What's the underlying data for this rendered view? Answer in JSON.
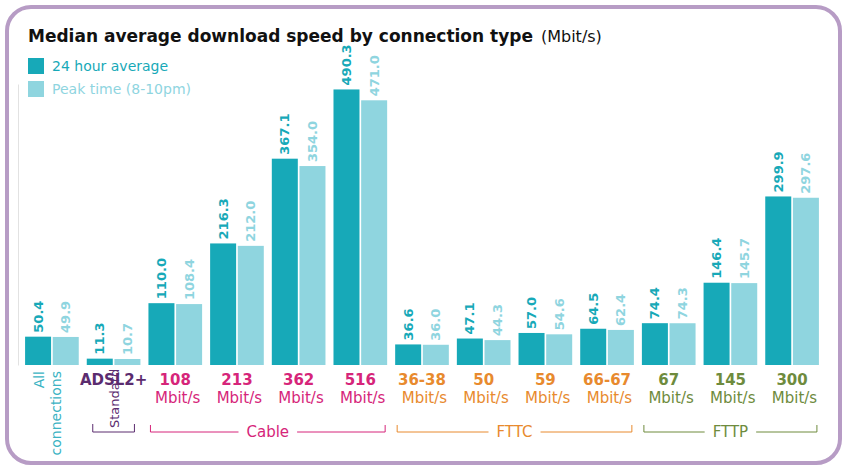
{
  "chart_data": {
    "type": "bar",
    "title": "Median average download speed by connection type",
    "subtitle": "(Mbit/s)",
    "categories": [
      "All connections",
      "ADSL2+",
      "108 Mbit/s",
      "213 Mbit/s",
      "362 Mbit/s",
      "516 Mbit/s",
      "36-38 Mbit/s",
      "50 Mbit/s",
      "59 Mbit/s",
      "66-67 Mbit/s",
      "67 Mbit/s",
      "145 Mbit/s",
      "300 Mbit/s"
    ],
    "series": [
      {
        "name": "24 hour average",
        "color": "#17a9b8",
        "values": [
          50.4,
          11.3,
          110.0,
          216.3,
          367.1,
          490.3,
          36.6,
          47.1,
          57.0,
          64.5,
          74.4,
          146.4,
          299.9
        ],
        "value_labels": [
          "50.4",
          "11.3",
          "110.0",
          "216.3",
          "367.1",
          "490.3",
          "36.6",
          "47.1",
          "57.0",
          "64.5",
          "74.4",
          "146.4",
          "299.9"
        ]
      },
      {
        "name": "Peak time (8-10pm)",
        "color": "#8fd5df",
        "values": [
          49.9,
          10.7,
          108.4,
          212.0,
          354.0,
          471.0,
          36.0,
          44.3,
          54.6,
          62.4,
          74.3,
          145.7,
          297.6
        ],
        "value_labels": [
          "49.9",
          "10.7",
          "108.4",
          "212.0",
          "354.0",
          "471.0",
          "36.0",
          "44.3",
          "54.6",
          "62.4",
          "74.3",
          "145.7",
          "297.6"
        ]
      }
    ],
    "groups": [
      {
        "name": "Standard",
        "color": "#5b2c6f",
        "categories": [
          1
        ]
      },
      {
        "name": "Cable",
        "color": "#d6257a",
        "categories": [
          2,
          3,
          4,
          5
        ]
      },
      {
        "name": "FTTC",
        "color": "#e88a2e",
        "categories": [
          6,
          7,
          8,
          9
        ]
      },
      {
        "name": "FTTP",
        "color": "#6e8b3d",
        "categories": [
          10,
          11,
          12
        ]
      }
    ],
    "ylim": [
      0,
      500
    ],
    "tick_labels": false,
    "grid": false,
    "legend": "top-left",
    "data_labels": true
  }
}
